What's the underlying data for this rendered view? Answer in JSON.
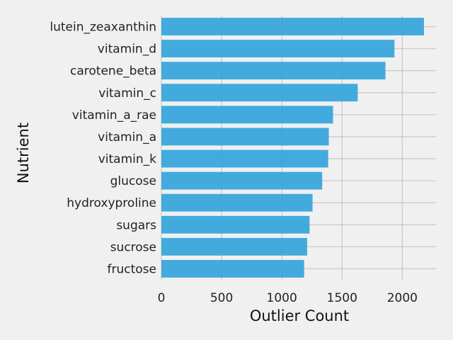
{
  "chart_data": {
    "type": "bar",
    "orientation": "horizontal",
    "title": "",
    "xlabel": "Outlier Count",
    "ylabel": "Nutrient",
    "categories": [
      "lutein_zeaxanthin",
      "vitamin_d",
      "carotene_beta",
      "vitamin_c",
      "vitamin_a_rae",
      "vitamin_a",
      "vitamin_k",
      "glucose",
      "hydroxyproline",
      "sugars",
      "sucrose",
      "fructose"
    ],
    "values": [
      2180,
      1935,
      1860,
      1630,
      1425,
      1390,
      1385,
      1335,
      1255,
      1230,
      1210,
      1185
    ],
    "xlim": [
      0,
      2280
    ],
    "xticks": [
      "0",
      "500",
      "1000",
      "1500",
      "2000"
    ],
    "xtick_values": [
      0,
      500,
      1000,
      1500,
      2000
    ],
    "grid": true,
    "bar_color": "#30a2da",
    "background_color": "#f0f0f0",
    "grid_color": "#cbcbcb"
  }
}
